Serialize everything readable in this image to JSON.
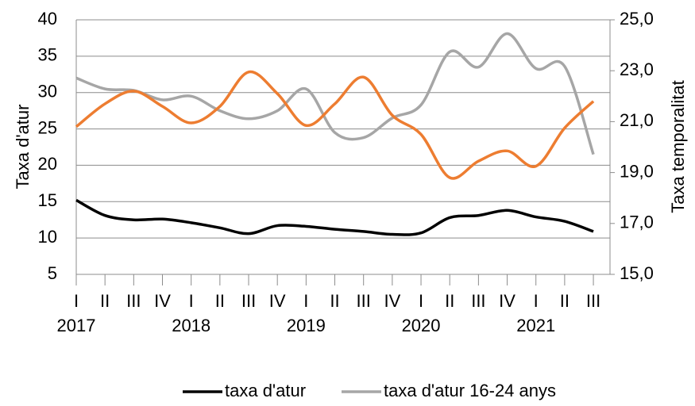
{
  "chart_data": {
    "type": "line",
    "categories": [
      "I",
      "II",
      "III",
      "IV",
      "I",
      "II",
      "III",
      "IV",
      "I",
      "II",
      "III",
      "IV",
      "I",
      "II",
      "III",
      "IV",
      "I",
      "II",
      "III"
    ],
    "years": [
      "2017",
      null,
      null,
      null,
      "2018",
      null,
      null,
      null,
      "2019",
      null,
      null,
      null,
      "2020",
      null,
      null,
      null,
      "2021",
      null,
      null
    ],
    "ylabel": "Taxa d'atur",
    "y2label": "Taxa temporalitat",
    "ylim": [
      5,
      40
    ],
    "yticks": [
      5,
      10,
      15,
      20,
      25,
      30,
      35,
      40
    ],
    "y2lim": [
      15,
      25
    ],
    "y2ticks": [
      {
        "value": 15,
        "label": "15,0"
      },
      {
        "value": 17,
        "label": "17,0"
      },
      {
        "value": 19,
        "label": "19,0"
      },
      {
        "value": 21,
        "label": "21,0"
      },
      {
        "value": 23,
        "label": "23,0"
      },
      {
        "value": 25,
        "label": "25,0"
      }
    ],
    "grid": true,
    "series": [
      {
        "name": "taxa d'atur",
        "color": "#000000",
        "values": [
          15.2,
          13.1,
          12.5,
          12.6,
          12.1,
          11.4,
          10.6,
          11.7,
          11.6,
          11.2,
          10.9,
          10.5,
          10.7,
          12.8,
          13.1,
          13.8,
          12.9,
          12.3,
          10.9
        ]
      },
      {
        "name": "taxa d'atur 16-24 anys",
        "color": "#a6a6a6",
        "values": [
          32.0,
          30.5,
          30.3,
          29.0,
          29.5,
          27.5,
          26.4,
          27.5,
          30.5,
          24.5,
          23.8,
          26.5,
          28.3,
          35.6,
          33.5,
          38.1,
          33.3,
          33.6,
          21.5
        ]
      },
      {
        "color": "#ed7d31",
        "axis": "y2",
        "values": [
          20.8,
          21.7,
          22.2,
          21.6,
          20.95,
          21.6,
          22.95,
          22.1,
          20.85,
          21.7,
          22.75,
          21.25,
          20.5,
          18.8,
          19.45,
          19.85,
          19.25,
          20.75,
          21.8
        ]
      }
    ]
  }
}
